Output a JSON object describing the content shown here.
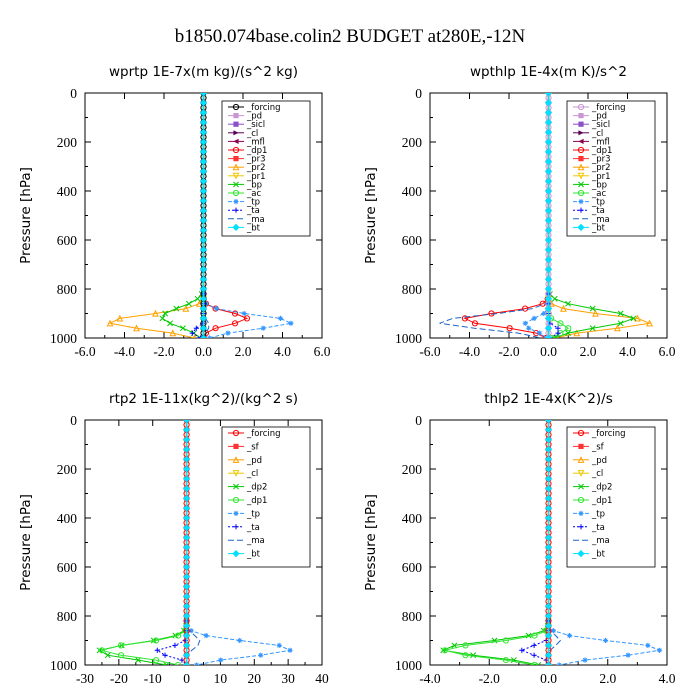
{
  "title": "b1850.074base.colin2  BUDGET at280E,-12N",
  "chart_data": [
    {
      "type": "line",
      "title": "wprtp   1E-7x(m kg)/(s^2 kg)",
      "ylabel": "Pressure [hPa]",
      "xlim": [
        -6,
        6
      ],
      "ylim": [
        1000,
        0
      ],
      "xticks": [
        -6,
        -4,
        -2,
        0,
        2,
        4,
        6
      ],
      "xtick_labels": [
        "-6.0",
        "-4.0",
        "-2.0",
        "0.0",
        "2.0",
        "4.0",
        "6.0"
      ],
      "yticks": [
        0,
        200,
        400,
        600,
        800,
        1000
      ],
      "ytick_labels": [
        "0",
        "200",
        "400",
        "600",
        "800",
        "1000"
      ],
      "legend": "top-right",
      "series": [
        {
          "name": "_forcing",
          "color": "#000000",
          "marker": "o",
          "dash": "",
          "profile": "zero"
        },
        {
          "name": "_pd",
          "color": "#c896d2",
          "marker": "s",
          "dash": "",
          "profile": "zero"
        },
        {
          "name": "_sicl",
          "color": "#8c50c8",
          "marker": "s",
          "dash": "",
          "profile": "zero"
        },
        {
          "name": "_cl",
          "color": "#5a005a",
          "marker": ">",
          "dash": "",
          "profile": "zero"
        },
        {
          "name": "_mfl",
          "color": "#8c0050",
          "marker": "<",
          "dash": "",
          "profile": "zero"
        },
        {
          "name": "_dp1",
          "color": "#ff0000",
          "marker": "o",
          "dash": "",
          "profile": "zero"
        },
        {
          "name": "_pr3",
          "color": "#ff3232",
          "marker": "s",
          "dash": "",
          "profile": "zero"
        },
        {
          "name": "_pr2",
          "color": "#ffa000",
          "marker": "^",
          "dash": "",
          "profile": "zero"
        },
        {
          "name": "_pr1",
          "color": "#f0c800",
          "marker": "v",
          "dash": "",
          "profile": "zero"
        },
        {
          "name": "_bp",
          "color": "#00c800",
          "marker": "x",
          "dash": "",
          "profile": "zero"
        },
        {
          "name": "_ac",
          "color": "#32e632",
          "marker": "o",
          "dash": "",
          "profile": "zero"
        },
        {
          "name": "_tp",
          "color": "#3296ff",
          "marker": "*",
          "dash": "4,2",
          "profile": "zero"
        },
        {
          "name": "_ta",
          "color": "#0000ff",
          "marker": "+",
          "dash": "2,2",
          "profile": "zero"
        },
        {
          "name": "_ma",
          "color": "#1e64c8",
          "marker": "",
          "dash": "6,3",
          "profile": "zero"
        },
        {
          "name": "_bt",
          "color": "#00e0ff",
          "marker": "D",
          "dash": "",
          "profile": "zero"
        }
      ]
    },
    {
      "type": "line",
      "title": "wpthlp   1E-4x(m K)/s^2",
      "ylabel": "Pressure [hPa]",
      "xlim": [
        -6,
        6
      ],
      "ylim": [
        1000,
        0
      ],
      "xticks": [
        -6,
        -4,
        -2,
        0,
        2,
        4,
        6
      ],
      "xtick_labels": [
        "-6.0",
        "-4.0",
        "-2.0",
        "0.0",
        "2.0",
        "4.0",
        "6.0"
      ],
      "yticks": [
        0,
        200,
        400,
        600,
        800,
        1000
      ],
      "ytick_labels": [
        "0",
        "200",
        "400",
        "600",
        "800",
        "1000"
      ],
      "legend": "top-right",
      "series": [
        {
          "name": "_forcing",
          "color": "#c896d2",
          "marker": "o",
          "dash": "",
          "profile": "zero"
        },
        {
          "name": "_pd",
          "color": "#c896d2",
          "marker": "s",
          "dash": "",
          "profile": "zero"
        },
        {
          "name": "_sicl",
          "color": "#8c50c8",
          "marker": "s",
          "dash": "",
          "profile": "zero"
        },
        {
          "name": "_cl",
          "color": "#5a005a",
          "marker": ">",
          "dash": "",
          "profile": "zero"
        },
        {
          "name": "_mfl",
          "color": "#8c0050",
          "marker": "<",
          "dash": "",
          "profile": "zero"
        },
        {
          "name": "_dp1",
          "color": "#ff0000",
          "marker": "o",
          "dash": "",
          "profile": "zero"
        },
        {
          "name": "_pr3",
          "color": "#ff3232",
          "marker": "s",
          "dash": "",
          "profile": "zero"
        },
        {
          "name": "_pr2",
          "color": "#ffa000",
          "marker": "^",
          "dash": "",
          "profile": "zero"
        },
        {
          "name": "_pr1",
          "color": "#f0c800",
          "marker": "v",
          "dash": "",
          "profile": "zero"
        },
        {
          "name": "_bp",
          "color": "#00c800",
          "marker": "x",
          "dash": "",
          "profile": "zero"
        },
        {
          "name": "_ac",
          "color": "#32e632",
          "marker": "o",
          "dash": "",
          "profile": "zero"
        },
        {
          "name": "_tp",
          "color": "#3296ff",
          "marker": "*",
          "dash": "4,2",
          "profile": "zero"
        },
        {
          "name": "_ta",
          "color": "#0000ff",
          "marker": "+",
          "dash": "2,2",
          "profile": "zero"
        },
        {
          "name": "_ma",
          "color": "#1e64c8",
          "marker": "",
          "dash": "6,3",
          "profile": "zero"
        },
        {
          "name": "_bt",
          "color": "#00e0ff",
          "marker": "D",
          "dash": "",
          "profile": "zero"
        }
      ]
    },
    {
      "type": "line",
      "title": "rtp2   1E-11x(kg^2)/(kg^2 s)",
      "ylabel": "Pressure [hPa]",
      "xlim": [
        -30,
        40
      ],
      "ylim": [
        1000,
        0
      ],
      "xticks": [
        -30,
        -20,
        -10,
        0,
        10,
        20,
        30,
        40
      ],
      "xtick_labels": [
        "-30",
        "-20",
        "-10",
        "0",
        "10",
        "20",
        "30",
        "40"
      ],
      "yticks": [
        0,
        200,
        400,
        600,
        800,
        1000
      ],
      "ytick_labels": [
        "0",
        "200",
        "400",
        "600",
        "800",
        "1000"
      ],
      "legend": "top-right",
      "series": [
        {
          "name": "_forcing",
          "color": "#ff0000",
          "marker": "o",
          "dash": "",
          "profile": "zero"
        },
        {
          "name": "_sf",
          "color": "#ff3232",
          "marker": "s",
          "dash": "",
          "profile": "zero"
        },
        {
          "name": "_pd",
          "color": "#ffa000",
          "marker": "^",
          "dash": "",
          "profile": "zero"
        },
        {
          "name": "_cl",
          "color": "#f0c800",
          "marker": "v",
          "dash": "",
          "profile": "zero"
        },
        {
          "name": "_dp2",
          "color": "#00c800",
          "marker": "x",
          "dash": "",
          "profile": "zero"
        },
        {
          "name": "_dp1",
          "color": "#32e632",
          "marker": "o",
          "dash": "",
          "profile": "zero"
        },
        {
          "name": "_tp",
          "color": "#3296ff",
          "marker": "*",
          "dash": "4,2",
          "profile": "zero"
        },
        {
          "name": "_ta",
          "color": "#0000ff",
          "marker": "+",
          "dash": "2,2",
          "profile": "zero"
        },
        {
          "name": "_ma",
          "color": "#1e64c8",
          "marker": "",
          "dash": "6,3",
          "profile": "zero"
        },
        {
          "name": "_bt",
          "color": "#00e0ff",
          "marker": "D",
          "dash": "",
          "profile": "zero"
        }
      ]
    },
    {
      "type": "line",
      "title": "thlp2   1E-4x(K^2)/s",
      "ylabel": "Pressure [hPa]",
      "xlim": [
        -4,
        4
      ],
      "ylim": [
        1000,
        0
      ],
      "xticks": [
        -4,
        -2,
        0,
        2,
        4
      ],
      "xtick_labels": [
        "-4.0",
        "-2.0",
        "0.0",
        "2.0",
        "4.0"
      ],
      "yticks": [
        0,
        200,
        400,
        600,
        800,
        1000
      ],
      "ytick_labels": [
        "0",
        "200",
        "400",
        "600",
        "800",
        "1000"
      ],
      "legend": "top-right",
      "series": [
        {
          "name": "_forcing",
          "color": "#ff0000",
          "marker": "o",
          "dash": "",
          "profile": "zero"
        },
        {
          "name": "_sf",
          "color": "#ff3232",
          "marker": "s",
          "dash": "",
          "profile": "zero"
        },
        {
          "name": "_pd",
          "color": "#ffa000",
          "marker": "^",
          "dash": "",
          "profile": "zero"
        },
        {
          "name": "_cl",
          "color": "#f0c800",
          "marker": "v",
          "dash": "",
          "profile": "zero"
        },
        {
          "name": "_dp2",
          "color": "#00c800",
          "marker": "x",
          "dash": "",
          "profile": "zero"
        },
        {
          "name": "_dp1",
          "color": "#32e632",
          "marker": "o",
          "dash": "",
          "profile": "zero"
        },
        {
          "name": "_tp",
          "color": "#3296ff",
          "marker": "*",
          "dash": "4,2",
          "profile": "zero"
        },
        {
          "name": "_ta",
          "color": "#0000ff",
          "marker": "+",
          "dash": "2,2",
          "profile": "zero"
        },
        {
          "name": "_ma",
          "color": "#1e64c8",
          "marker": "",
          "dash": "6,3",
          "profile": "zero"
        },
        {
          "name": "_bt",
          "color": "#00e0ff",
          "marker": "D",
          "dash": "",
          "profile": "zero"
        }
      ]
    }
  ]
}
